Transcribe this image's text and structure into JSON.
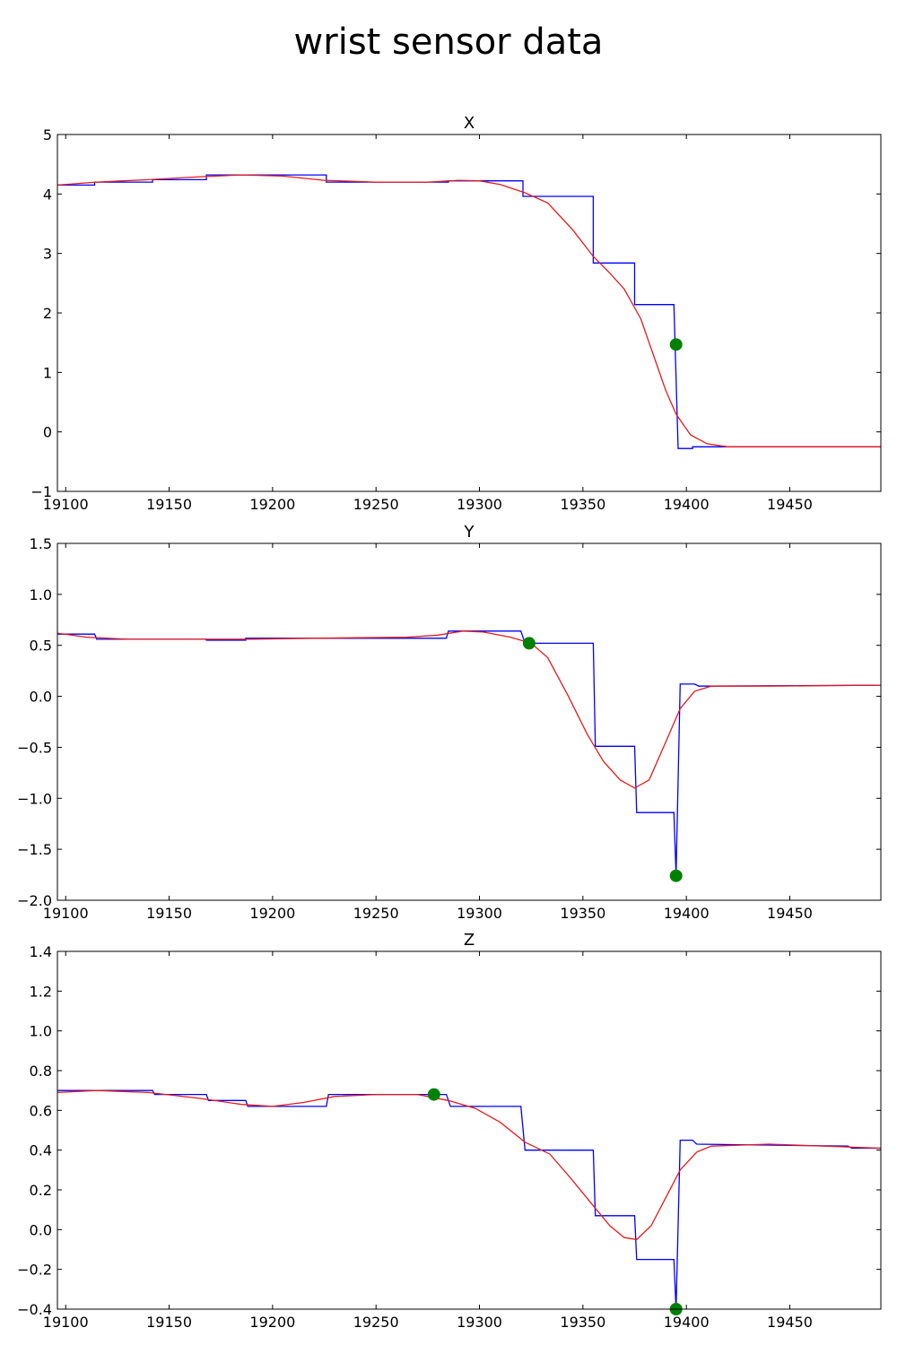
{
  "figure": {
    "title": "wrist sensor data"
  },
  "colors": {
    "raw": "#0000ff",
    "smoothed": "#e41a1c",
    "marker": "#008000"
  },
  "chart_data": [
    {
      "type": "line",
      "title": "X",
      "xlim": [
        19096,
        19494
      ],
      "ylim": [
        -1,
        5
      ],
      "x_ticks": [
        19100,
        19150,
        19200,
        19250,
        19300,
        19350,
        19400,
        19450
      ],
      "y_ticks": [
        -1,
        0,
        1,
        2,
        3,
        4,
        5
      ],
      "y_tick_labels": [
        "−1",
        "0",
        "1",
        "2",
        "3",
        "4",
        "5"
      ],
      "series": [
        {
          "color": "#0000ff",
          "style": "step",
          "points": [
            [
              19096,
              4.15
            ],
            [
              19114,
              4.15
            ],
            [
              19114,
              4.2
            ],
            [
              19142,
              4.2
            ],
            [
              19142,
              4.24
            ],
            [
              19168,
              4.24
            ],
            [
              19168,
              4.32
            ],
            [
              19226,
              4.32
            ],
            [
              19226,
              4.2
            ],
            [
              19285,
              4.2
            ],
            [
              19285,
              4.22
            ],
            [
              19321,
              4.22
            ],
            [
              19321,
              3.96
            ],
            [
              19355,
              3.96
            ],
            [
              19355,
              2.84
            ],
            [
              19375,
              2.84
            ],
            [
              19375,
              2.14
            ],
            [
              19394,
              2.14
            ],
            [
              19396,
              -0.28
            ],
            [
              19403,
              -0.28
            ],
            [
              19403,
              -0.25
            ],
            [
              19410,
              -0.25
            ],
            [
              19494,
              -0.25
            ]
          ]
        },
        {
          "color": "#e41a1c",
          "style": "line",
          "points": [
            [
              19096,
              4.15
            ],
            [
              19115,
              4.2
            ],
            [
              19140,
              4.24
            ],
            [
              19165,
              4.29
            ],
            [
              19185,
              4.32
            ],
            [
              19205,
              4.3
            ],
            [
              19225,
              4.23
            ],
            [
              19250,
              4.2
            ],
            [
              19275,
              4.2
            ],
            [
              19290,
              4.23
            ],
            [
              19300,
              4.22
            ],
            [
              19310,
              4.16
            ],
            [
              19322,
              4.02
            ],
            [
              19333,
              3.85
            ],
            [
              19345,
              3.4
            ],
            [
              19355,
              2.95
            ],
            [
              19363,
              2.67
            ],
            [
              19370,
              2.4
            ],
            [
              19378,
              1.9
            ],
            [
              19385,
              1.2
            ],
            [
              19390,
              0.7
            ],
            [
              19395,
              0.3
            ],
            [
              19402,
              -0.05
            ],
            [
              19410,
              -0.2
            ],
            [
              19420,
              -0.25
            ],
            [
              19494,
              -0.25
            ]
          ]
        }
      ],
      "markers": [
        {
          "x": 19395,
          "y": 1.47
        }
      ]
    },
    {
      "type": "line",
      "title": "Y",
      "xlim": [
        19096,
        19494
      ],
      "ylim": [
        -2.0,
        1.5
      ],
      "x_ticks": [
        19100,
        19150,
        19200,
        19250,
        19300,
        19350,
        19400,
        19450
      ],
      "y_ticks": [
        -2.0,
        -1.5,
        -1.0,
        -0.5,
        0.0,
        0.5,
        1.0,
        1.5
      ],
      "y_tick_labels": [
        "−2.0",
        "−1.5",
        "−1.0",
        "−0.5",
        "0.0",
        "0.5",
        "1.0",
        "1.5"
      ],
      "series": [
        {
          "color": "#0000ff",
          "style": "step",
          "points": [
            [
              19096,
              0.61
            ],
            [
              19114,
              0.61
            ],
            [
              19115,
              0.56
            ],
            [
              19168,
              0.56
            ],
            [
              19168,
              0.55
            ],
            [
              19187,
              0.55
            ],
            [
              19187,
              0.57
            ],
            [
              19284,
              0.57
            ],
            [
              19285,
              0.64
            ],
            [
              19320,
              0.64
            ],
            [
              19322,
              0.52
            ],
            [
              19355,
              0.52
            ],
            [
              19356,
              -0.49
            ],
            [
              19375,
              -0.49
            ],
            [
              19376,
              -1.14
            ],
            [
              19394,
              -1.14
            ],
            [
              19395,
              -1.75
            ],
            [
              19397,
              0.12
            ],
            [
              19404,
              0.12
            ],
            [
              19406,
              0.1
            ],
            [
              19494,
              0.11
            ]
          ]
        },
        {
          "color": "#e41a1c",
          "style": "line",
          "points": [
            [
              19096,
              0.62
            ],
            [
              19110,
              0.58
            ],
            [
              19130,
              0.56
            ],
            [
              19160,
              0.56
            ],
            [
              19190,
              0.56
            ],
            [
              19220,
              0.57
            ],
            [
              19265,
              0.58
            ],
            [
              19280,
              0.6
            ],
            [
              19292,
              0.64
            ],
            [
              19302,
              0.63
            ],
            [
              19315,
              0.58
            ],
            [
              19325,
              0.52
            ],
            [
              19333,
              0.38
            ],
            [
              19343,
              0.0
            ],
            [
              19352,
              -0.37
            ],
            [
              19360,
              -0.64
            ],
            [
              19368,
              -0.82
            ],
            [
              19375,
              -0.9
            ],
            [
              19382,
              -0.82
            ],
            [
              19390,
              -0.45
            ],
            [
              19397,
              -0.12
            ],
            [
              19404,
              0.05
            ],
            [
              19412,
              0.1
            ],
            [
              19440,
              0.1
            ],
            [
              19494,
              0.11
            ]
          ]
        }
      ],
      "markers": [
        {
          "x": 19324,
          "y": 0.52
        },
        {
          "x": 19395,
          "y": -1.76
        }
      ]
    },
    {
      "type": "line",
      "title": "Z",
      "xlim": [
        19096,
        19494
      ],
      "ylim": [
        -0.4,
        1.4
      ],
      "x_ticks": [
        19100,
        19150,
        19200,
        19250,
        19300,
        19350,
        19400,
        19450
      ],
      "y_ticks": [
        -0.4,
        -0.2,
        0.0,
        0.2,
        0.4,
        0.6,
        0.8,
        1.0,
        1.2,
        1.4
      ],
      "y_tick_labels": [
        "−0.4",
        "−0.2",
        "0.0",
        "0.2",
        "0.4",
        "0.6",
        "0.8",
        "1.0",
        "1.2",
        "1.4"
      ],
      "series": [
        {
          "color": "#0000ff",
          "style": "step",
          "points": [
            [
              19096,
              0.7
            ],
            [
              19142,
              0.7
            ],
            [
              19143,
              0.68
            ],
            [
              19168,
              0.68
            ],
            [
              19169,
              0.65
            ],
            [
              19187,
              0.65
            ],
            [
              19188,
              0.62
            ],
            [
              19226,
              0.62
            ],
            [
              19227,
              0.68
            ],
            [
              19284,
              0.68
            ],
            [
              19286,
              0.62
            ],
            [
              19320,
              0.62
            ],
            [
              19322,
              0.4
            ],
            [
              19355,
              0.4
            ],
            [
              19356,
              0.07
            ],
            [
              19375,
              0.07
            ],
            [
              19376,
              -0.15
            ],
            [
              19394,
              -0.15
            ],
            [
              19395,
              -0.4
            ],
            [
              19397,
              0.45
            ],
            [
              19403,
              0.45
            ],
            [
              19405,
              0.43
            ],
            [
              19478,
              0.42
            ],
            [
              19480,
              0.41
            ],
            [
              19494,
              0.41
            ]
          ]
        },
        {
          "color": "#e41a1c",
          "style": "line",
          "points": [
            [
              19096,
              0.69
            ],
            [
              19115,
              0.7
            ],
            [
              19140,
              0.69
            ],
            [
              19165,
              0.66
            ],
            [
              19185,
              0.63
            ],
            [
              19200,
              0.62
            ],
            [
              19215,
              0.64
            ],
            [
              19230,
              0.67
            ],
            [
              19250,
              0.68
            ],
            [
              19270,
              0.68
            ],
            [
              19285,
              0.65
            ],
            [
              19298,
              0.61
            ],
            [
              19310,
              0.54
            ],
            [
              19322,
              0.44
            ],
            [
              19334,
              0.38
            ],
            [
              19344,
              0.26
            ],
            [
              19355,
              0.12
            ],
            [
              19363,
              0.02
            ],
            [
              19370,
              -0.04
            ],
            [
              19376,
              -0.05
            ],
            [
              19383,
              0.02
            ],
            [
              19390,
              0.16
            ],
            [
              19397,
              0.3
            ],
            [
              19405,
              0.39
            ],
            [
              19412,
              0.42
            ],
            [
              19440,
              0.43
            ],
            [
              19494,
              0.41
            ]
          ]
        }
      ],
      "markers": [
        {
          "x": 19278,
          "y": 0.68
        },
        {
          "x": 19395,
          "y": -0.4
        }
      ]
    }
  ]
}
